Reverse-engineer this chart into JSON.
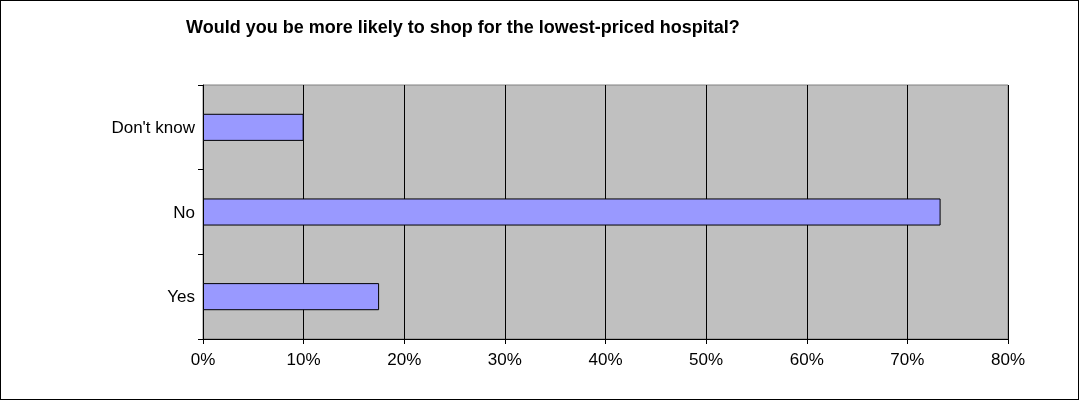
{
  "chart_data": {
    "type": "bar",
    "orientation": "horizontal",
    "title": "Would you be more likely to shop for the lowest-priced hospital?",
    "categories": [
      "Don't know",
      "No",
      "Yes"
    ],
    "values": [
      10,
      73.3,
      17.5
    ],
    "color": "#9999ff",
    "xlim": [
      0,
      80
    ],
    "xticks": [
      {
        "value": 0,
        "label": "0%"
      },
      {
        "value": 10,
        "label": "10%"
      },
      {
        "value": 20,
        "label": "20%"
      },
      {
        "value": 30,
        "label": "30%"
      },
      {
        "value": 40,
        "label": "40%"
      },
      {
        "value": 50,
        "label": "50%"
      },
      {
        "value": 60,
        "label": "60%"
      },
      {
        "value": 70,
        "label": "70%"
      },
      {
        "value": 80,
        "label": "80%"
      }
    ],
    "grid": "x"
  }
}
